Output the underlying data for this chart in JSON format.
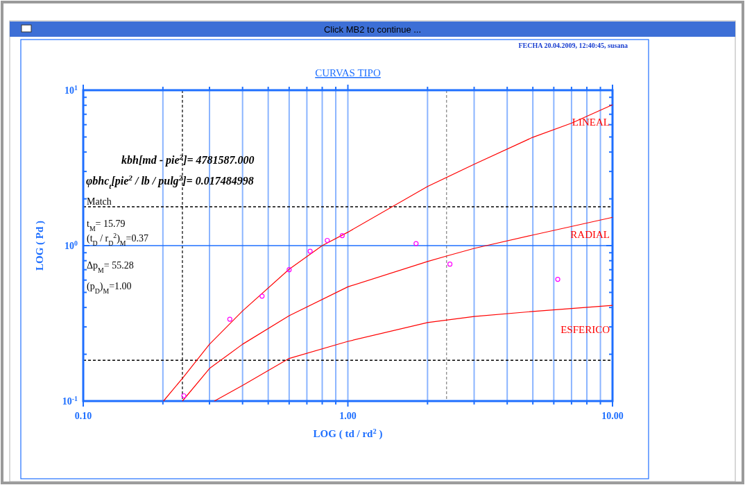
{
  "chart_data": {
    "type": "line",
    "title": "CURVAS TIPO",
    "xlabel": "LOG ( td / rd$^{2}$ )",
    "ylabel": "LOG ( Pd )",
    "log": "xy",
    "grid": "x",
    "line_style": "solid",
    "xlim": [
      0.1,
      10
    ],
    "ylim": [
      0.1,
      10
    ],
    "xticks": [
      {
        "value": 0.1,
        "label": "0.10"
      },
      {
        "value": 0.2,
        "label": null
      },
      {
        "value": 0.3,
        "label": null
      },
      {
        "value": 0.4,
        "label": null
      },
      {
        "value": 0.5,
        "label": null
      },
      {
        "value": 0.6,
        "label": null
      },
      {
        "value": 0.7,
        "label": null
      },
      {
        "value": 0.8,
        "label": null
      },
      {
        "value": 0.9,
        "label": null
      },
      {
        "value": 1,
        "label": "1.00"
      },
      {
        "value": 2,
        "label": null
      },
      {
        "value": 3,
        "label": null
      },
      {
        "value": 4,
        "label": null
      },
      {
        "value": 5,
        "label": null
      },
      {
        "value": 6,
        "label": null
      },
      {
        "value": 7,
        "label": null
      },
      {
        "value": 8,
        "label": null
      },
      {
        "value": 9,
        "label": null
      },
      {
        "value": 10,
        "label": "10.00"
      }
    ],
    "yticks": [
      {
        "value": 0.1,
        "label": "10$^{-1}$"
      },
      {
        "value": 0.2,
        "label": null
      },
      {
        "value": 0.3,
        "label": null
      },
      {
        "value": 0.4,
        "label": null
      },
      {
        "value": 0.5,
        "label": null
      },
      {
        "value": 0.6,
        "label": null
      },
      {
        "value": 0.7,
        "label": null
      },
      {
        "value": 0.8,
        "label": null
      },
      {
        "value": 0.9,
        "label": null
      },
      {
        "value": 1,
        "label": "10$^{0}$"
      },
      {
        "value": 2,
        "label": null
      },
      {
        "value": 3,
        "label": null
      },
      {
        "value": 4,
        "label": null
      },
      {
        "value": 5,
        "label": null
      },
      {
        "value": 6,
        "label": null
      },
      {
        "value": 7,
        "label": null
      },
      {
        "value": 8,
        "label": null
      },
      {
        "value": 9,
        "label": null
      },
      {
        "value": 10,
        "label": "10$^{1}$"
      }
    ],
    "series": [
      {
        "name": "LINEAL",
        "color": "#ff0000",
        "x": [
          0.201,
          0.237,
          0.3,
          0.4,
          0.6,
          0.8,
          1,
          2,
          3,
          5,
          7,
          10
        ],
        "values": [
          0.1,
          0.14,
          0.232,
          0.38,
          0.705,
          1,
          1.22,
          2.4,
          3.34,
          4.98,
          6.14,
          8.06
        ]
      },
      {
        "name": "RADIAL",
        "color": "#ff0000",
        "x": [
          0.237,
          0.3,
          0.4,
          0.6,
          1,
          2,
          2.36,
          3,
          5,
          10
        ],
        "values": [
          0.1,
          0.162,
          0.232,
          0.354,
          0.543,
          0.79,
          0.857,
          0.96,
          1.17,
          1.52
        ]
      },
      {
        "name": "ESFERICO",
        "color": "#ff0000",
        "x": [
          0.313,
          0.4,
          0.6,
          1,
          2,
          3,
          5,
          10
        ],
        "values": [
          0.1,
          0.126,
          0.188,
          0.242,
          0.32,
          0.35,
          0.377,
          0.413
        ]
      },
      {
        "type": "scatter",
        "marker": "circle",
        "color": "#ff00ff",
        "x": [
          0.24,
          0.358,
          0.474,
          0.6,
          0.72,
          0.836,
          0.952,
          1.81,
          2.43,
          6.21
        ],
        "values": [
          0.108,
          0.336,
          0.473,
          0.7,
          0.92,
          1.08,
          1.16,
          1.03,
          0.76,
          0.607
        ]
      }
    ],
    "ref_lines": [
      {
        "axis": "x",
        "value": 0.237,
        "color": "#000000",
        "line_style": "dashed"
      },
      {
        "axis": "x",
        "value": 2.36,
        "color": "#808080",
        "line_style": "dashed"
      },
      {
        "axis": "y",
        "value": 1.78,
        "color": "#000000",
        "line_style": "dashed"
      },
      {
        "axis": "y",
        "value": 0.183,
        "color": "#000000",
        "line_style": "dashed"
      },
      {
        "axis": "y",
        "value": 1,
        "color": "#1e6fff",
        "line_style": "solid"
      }
    ],
    "annotations": [
      "Click MB2 to continue ...",
      "FECHA 20.04.2009, 12:40:45, susana",
      "kbh[md - pie$^{2}$]=  4781587.000",
      "φbhc$_{t}$[pie$^{2}$ / lb / pulg$^{2}$]=  0.017484998",
      "Match",
      "t$_{M}$=  15.79",
      "(t$_{D}$ / r$_{D}$$^{2}$)$_{M}$=0.37",
      "Δp$_{M}$=  55.28",
      "(p$_{D}$)$_{M}$=1.00"
    ]
  }
}
